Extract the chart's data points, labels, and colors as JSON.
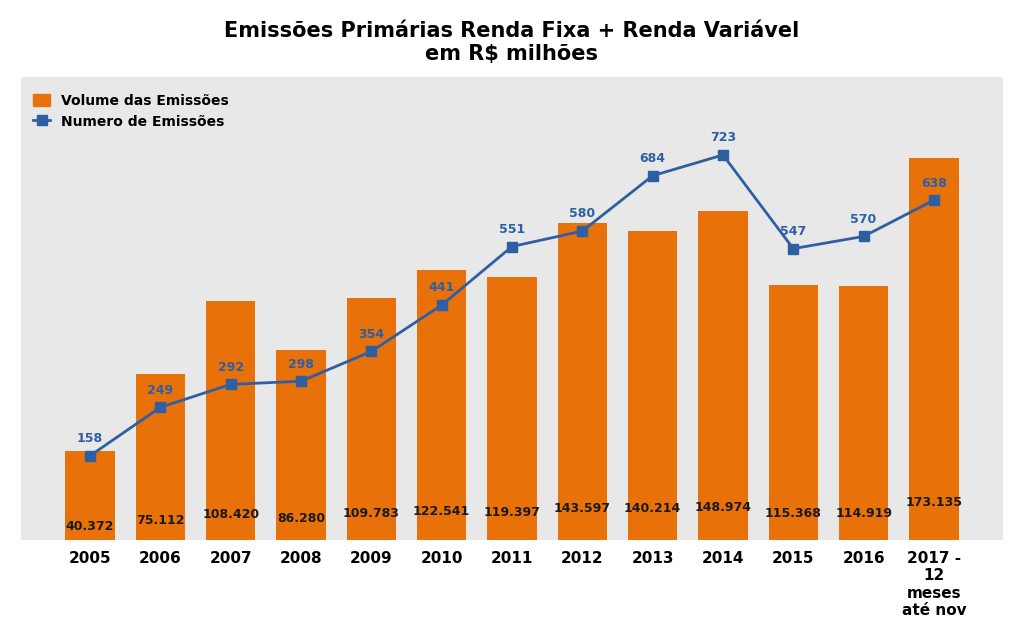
{
  "title_line1": "Emissões Primárias Renda Fixa + Renda Variável",
  "title_line2": "em R$ milhões",
  "years": [
    "2005",
    "2006",
    "2007",
    "2008",
    "2009",
    "2010",
    "2011",
    "2012",
    "2013",
    "2014",
    "2015",
    "2016",
    "2017 -\n12\nmeses\naté nov"
  ],
  "bar_values": [
    40.372,
    75.112,
    108.42,
    86.28,
    109.783,
    122.541,
    119.397,
    143.597,
    140.214,
    148.974,
    115.368,
    114.919,
    173.135
  ],
  "bar_labels": [
    "40.372",
    "75.112",
    "108.420",
    "86.280",
    "109.783",
    "122.541",
    "119.397",
    "143.597",
    "140.214",
    "148.974",
    "115.368",
    "114.919",
    "173.135"
  ],
  "line_values": [
    158,
    249,
    292,
    298,
    354,
    441,
    551,
    580,
    684,
    723,
    547,
    570,
    638
  ],
  "line_labels": [
    "158",
    "249",
    "292",
    "298",
    "354",
    "441",
    "551",
    "580",
    "684",
    "723",
    "547",
    "570",
    "638"
  ],
  "bar_color": "#E8710A",
  "line_color": "#2E5FA3",
  "figure_background": "#FFFFFF",
  "plot_background": "#E8E8E8",
  "grid_color": "#FFFFFF",
  "bar_label_color": "#1A1A1A",
  "line_label_color": "#2E5FA3",
  "legend_bar_label": "Volume das Emissões",
  "legend_line_label": "Numero de Emissões",
  "ylim_bar": [
    0,
    210
  ],
  "ylim_line": [
    0,
    870
  ],
  "title_fontsize": 15,
  "bar_label_fontsize": 9,
  "line_label_fontsize": 9,
  "axis_fontsize": 11
}
